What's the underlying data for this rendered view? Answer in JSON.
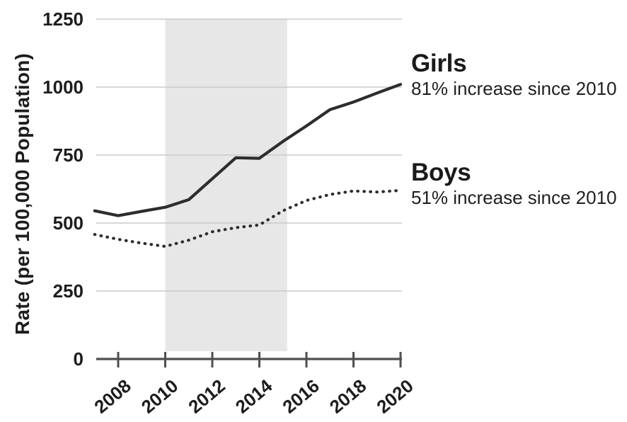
{
  "chart_data": {
    "type": "line",
    "title": "",
    "xlabel": "",
    "ylabel": "Rate (per 100,000 Population)",
    "x": [
      2007,
      2008,
      2009,
      2010,
      2011,
      2012,
      2013,
      2014,
      2015,
      2016,
      2017,
      2018,
      2019,
      2020
    ],
    "series": [
      {
        "name": "Girls",
        "annotation": "81% increase since 2010",
        "line_style": "solid",
        "values": [
          545,
          527,
          543,
          558,
          586,
          663,
          740,
          738,
          800,
          857,
          917,
          945,
          978,
          1010
        ]
      },
      {
        "name": "Boys",
        "annotation": "51% increase since 2010",
        "line_style": "dotted",
        "values": [
          458,
          440,
          426,
          414,
          437,
          468,
          483,
          493,
          545,
          583,
          605,
          618,
          614,
          620
        ]
      }
    ],
    "x_ticks": [
      2008,
      2010,
      2012,
      2014,
      2016,
      2018,
      2020
    ],
    "y_ticks": [
      0,
      250,
      500,
      750,
      1000,
      1250
    ],
    "xlim": [
      2007,
      2020
    ],
    "ylim": [
      0,
      1250
    ],
    "grid": true,
    "legend_position": "right-of-line-ends",
    "shaded_region": {
      "start_year": 2010,
      "end_year": 2015
    }
  },
  "colors": {
    "line": "#2d2d2d",
    "axis": "#4f4f4f",
    "gridline": "#cacaca",
    "shaded_band": "#e7e7e7",
    "text": "#1d1d1d",
    "background": "#ffffff"
  }
}
